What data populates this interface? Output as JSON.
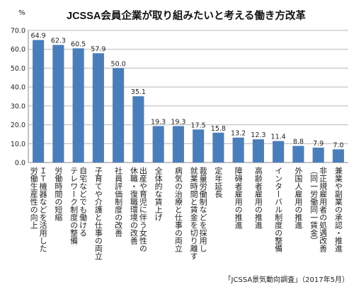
{
  "chart_data": {
    "type": "bar",
    "title": "JCSSA会員企業が取り組みたいと考える働き方改革",
    "ylabel": "%",
    "source": "「JCSSA景気動向調査」（2017年5月）",
    "ylim": [
      0,
      70
    ],
    "yticks": [
      "0.0",
      "10.0",
      "20.0",
      "30.0",
      "40.0",
      "50.0",
      "60.0",
      "70.0"
    ],
    "grid": true,
    "bar_color": "#4a7ebb",
    "categories": [
      [
        "ＩＴ機器などを活用した",
        "労働生産性の向上"
      ],
      [
        "労働時間の短縮"
      ],
      [
        "自宅などでも働ける",
        "テレワーク制度の整備"
      ],
      [
        "子育てや介護と仕事の両立"
      ],
      [
        "社員評価制度の改善"
      ],
      [
        "出産や育児に伴う女性の",
        "休職・復職環境の改善"
      ],
      [
        "全体的な賃上げ"
      ],
      [
        "病気の治療と仕事の両立"
      ],
      [
        "裁量労働制などを採用し",
        "就業時間と賃金を切り離す"
      ],
      [
        "定年延長"
      ],
      [
        "障碍者雇用の推進"
      ],
      [
        "高齢者雇用の推進"
      ],
      [
        "インターバル制度の整備"
      ],
      [
        "外国人雇用の推進"
      ],
      [
        "非正規雇用者の処遇改善",
        "（同一労働同一賃金）"
      ],
      [
        "兼業や副業の承認・推進"
      ]
    ],
    "values": [
      64.9,
      62.3,
      60.5,
      57.9,
      50.0,
      35.1,
      19.3,
      19.3,
      17.5,
      15.8,
      13.2,
      12.3,
      11.4,
      8.8,
      7.9,
      7.0
    ],
    "value_labels": [
      "64.9",
      "62.3",
      "60.5",
      "57.9",
      "50.0",
      "35.1",
      "19.3",
      "19.3",
      "17.5",
      "15.8",
      "13.2",
      "12.3",
      "11.4",
      "8.8",
      "7.9",
      "7.0"
    ]
  }
}
